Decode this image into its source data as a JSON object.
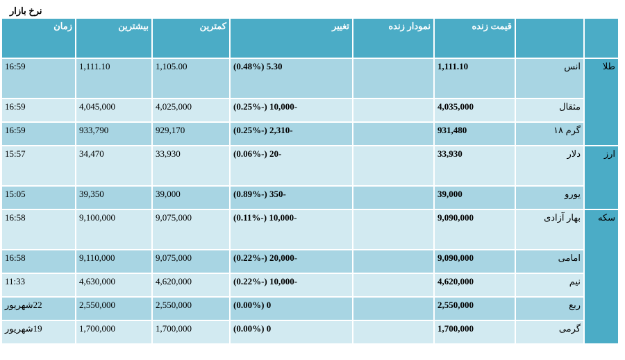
{
  "page_title": "نرخ بازار",
  "headers": {
    "group": "",
    "name": "",
    "price": "قیمت زنده",
    "chart": "نمودار زنده",
    "change": "تغییر",
    "low": "کمترین",
    "high": "بیشترین",
    "time": "زمان"
  },
  "groups": [
    {
      "label": "طلا",
      "rows": [
        {
          "name": "انس",
          "price": "1,111.10",
          "change": "5.30 (0.48%)",
          "low": "1,105.00",
          "high": "1,111.10",
          "time": "16:59"
        },
        {
          "name": "مثقال",
          "price": "4,035,000",
          "change": "-10,000 (-0.25%)",
          "low": "4,025,000",
          "high": "4,045,000",
          "time": "16:59"
        },
        {
          "name": "گرم ۱۸",
          "price": "931,480",
          "change": "-2,310 (-0.25%)",
          "low": "929,170",
          "high": "933,790",
          "time": "16:59"
        }
      ]
    },
    {
      "label": "ارز",
      "rows": [
        {
          "name": "دلار",
          "price": "33,930",
          "change": "-20 (-0.06%)",
          "low": "33,930",
          "high": "34,470",
          "time": "15:57"
        },
        {
          "name": "یورو",
          "price": "39,000",
          "change": "-350 (-0.89%)",
          "low": "39,000",
          "high": "39,350",
          "time": "15:05"
        }
      ]
    },
    {
      "label": "سکه",
      "rows": [
        {
          "name": "بهار آزادی",
          "price": "9,090,000",
          "change": "-10,000 (-0.11%)",
          "low": "9,075,000",
          "high": "9,100,000",
          "time": "16:58"
        },
        {
          "name": "امامی",
          "price": "9,090,000",
          "change": "-20,000 (-0.22%)",
          "low": "9,075,000",
          "high": "9,110,000",
          "time": "16:58"
        },
        {
          "name": "نیم",
          "price": "4,620,000",
          "change": "-10,000 (-0.22%)",
          "low": "4,620,000",
          "high": "4,630,000",
          "time": "11:33"
        },
        {
          "name": "ربع",
          "price": "2,550,000",
          "change": "0 (0.00%)",
          "low": "2,550,000",
          "high": "2,550,000",
          "time": "22شهریور"
        },
        {
          "name": "گرمی",
          "price": "1,700,000",
          "change": "0 (0.00%)",
          "low": "1,700,000",
          "high": "1,700,000",
          "time": "19شهریور"
        }
      ]
    }
  ]
}
